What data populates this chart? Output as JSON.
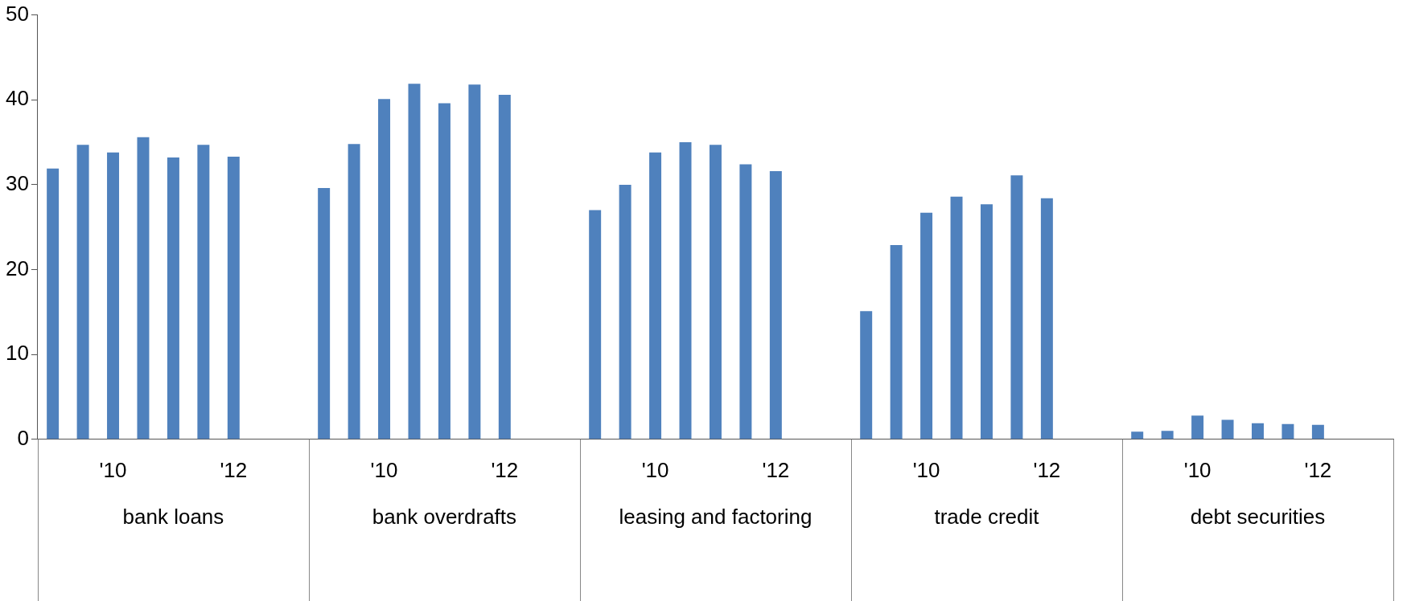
{
  "chart_data": {
    "type": "bar",
    "categories": [
      "bank loans",
      "bank overdrafts",
      "leasing and factoring",
      "trade credit",
      "debt securities"
    ],
    "series": [
      {
        "color": "#4f81bd",
        "values": [
          31.9,
          29.6,
          27.0,
          15.1,
          0.9
        ]
      },
      {
        "color": "#4f81bd",
        "values": [
          34.7,
          34.8,
          30.0,
          22.9,
          1.0
        ]
      },
      {
        "name": "'10",
        "color": "#4f81bd",
        "values": [
          33.8,
          40.1,
          33.8,
          26.7,
          2.8
        ]
      },
      {
        "color": "#4f81bd",
        "values": [
          35.6,
          41.9,
          35.0,
          28.6,
          2.3
        ]
      },
      {
        "color": "#4f81bd",
        "values": [
          33.2,
          39.6,
          34.7,
          27.7,
          1.9
        ]
      },
      {
        "color": "#4f81bd",
        "values": [
          34.7,
          41.8,
          32.4,
          31.1,
          1.8
        ]
      },
      {
        "name": "'12",
        "color": "#4f81bd",
        "values": [
          33.3,
          40.6,
          31.6,
          28.4,
          1.7
        ]
      }
    ],
    "ylim": [
      0,
      50
    ],
    "yticks": [
      0,
      10,
      20,
      30,
      40,
      50
    ],
    "grid": false,
    "legend": false
  }
}
